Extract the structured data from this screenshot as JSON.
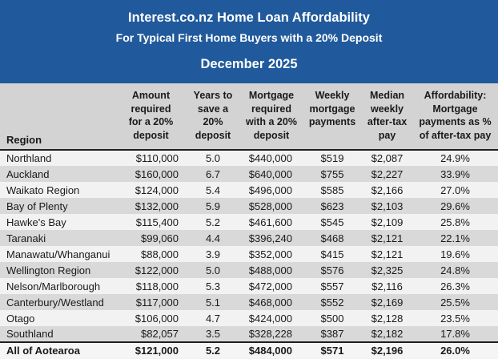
{
  "banner": {
    "title": "Interest.co.nz Home Loan Affordability",
    "subtitle": "For Typical First Home Buyers with a 20% Deposit",
    "period": "December 2025"
  },
  "table": {
    "region_header": "Region",
    "column_headers": [
      "Amount\nrequired\nfor a 20%\ndeposit",
      "Years to\nsave a\n20%\ndeposit",
      "Mortgage\nrequired\nwith a 20%\ndeposit",
      "Weekly\nmortgage\npayments",
      "Median\nweekly\nafter-tax\npay",
      "Affordability:\nMortgage\npayments as %\nof after-tax pay"
    ],
    "rows": [
      {
        "region": "Northland",
        "amount": "$110,000",
        "years": "5.0",
        "mortgage": "$440,000",
        "weekly": "$519",
        "median": "$2,087",
        "affordability": "24.9%"
      },
      {
        "region": "Auckland",
        "amount": "$160,000",
        "years": "6.7",
        "mortgage": "$640,000",
        "weekly": "$755",
        "median": "$2,227",
        "affordability": "33.9%"
      },
      {
        "region": "Waikato Region",
        "amount": "$124,000",
        "years": "5.4",
        "mortgage": "$496,000",
        "weekly": "$585",
        "median": "$2,166",
        "affordability": "27.0%"
      },
      {
        "region": "Bay of Plenty",
        "amount": "$132,000",
        "years": "5.9",
        "mortgage": "$528,000",
        "weekly": "$623",
        "median": "$2,103",
        "affordability": "29.6%"
      },
      {
        "region": "Hawke's Bay",
        "amount": "$115,400",
        "years": "5.2",
        "mortgage": "$461,600",
        "weekly": "$545",
        "median": "$2,109",
        "affordability": "25.8%"
      },
      {
        "region": "Taranaki",
        "amount": "$99,060",
        "years": "4.4",
        "mortgage": "$396,240",
        "weekly": "$468",
        "median": "$2,121",
        "affordability": "22.1%"
      },
      {
        "region": "Manawatu/Whanganui",
        "amount": "$88,000",
        "years": "3.9",
        "mortgage": "$352,000",
        "weekly": "$415",
        "median": "$2,121",
        "affordability": "19.6%"
      },
      {
        "region": "Wellington Region",
        "amount": "$122,000",
        "years": "5.0",
        "mortgage": "$488,000",
        "weekly": "$576",
        "median": "$2,325",
        "affordability": "24.8%"
      },
      {
        "region": "Nelson/Marlborough",
        "amount": "$118,000",
        "years": "5.3",
        "mortgage": "$472,000",
        "weekly": "$557",
        "median": "$2,116",
        "affordability": "26.3%"
      },
      {
        "region": "Canterbury/Westland",
        "amount": "$117,000",
        "years": "5.1",
        "mortgage": "$468,000",
        "weekly": "$552",
        "median": "$2,169",
        "affordability": "25.5%"
      },
      {
        "region": "Otago",
        "amount": "$106,000",
        "years": "4.7",
        "mortgage": "$424,000",
        "weekly": "$500",
        "median": "$2,128",
        "affordability": "23.5%"
      },
      {
        "region": "Southland",
        "amount": "$82,057",
        "years": "3.5",
        "mortgage": "$328,228",
        "weekly": "$387",
        "median": "$2,182",
        "affordability": "17.8%"
      }
    ],
    "total_row": {
      "region": "All of Aotearoa",
      "amount": "$121,000",
      "years": "5.2",
      "mortgage": "$484,000",
      "weekly": "$571",
      "median": "$2,196",
      "affordability": "26.0%"
    }
  },
  "colors": {
    "banner_bg": "#215A9C",
    "banner_text": "#FFFFFF",
    "header_bg": "#D3D3D3",
    "row_light": "#F2F2F2",
    "row_dark": "#D9D9D9",
    "divider": "#1F1F1F",
    "text": "#1A1A1A"
  },
  "chart_data": {
    "type": "table",
    "title": "Interest.co.nz Home Loan Affordability",
    "subtitle": "For Typical First Home Buyers with a 20% Deposit",
    "period": "December 2025",
    "columns": [
      "Region",
      "Amount required for a 20% deposit",
      "Years to save a 20% deposit",
      "Mortgage required with a 20% deposit",
      "Weekly mortgage payments",
      "Median weekly after-tax pay",
      "Affordability: Mortgage payments as % of after-tax pay"
    ],
    "rows": [
      [
        "Northland",
        110000,
        5.0,
        440000,
        519,
        2087,
        24.9
      ],
      [
        "Auckland",
        160000,
        6.7,
        640000,
        755,
        2227,
        33.9
      ],
      [
        "Waikato Region",
        124000,
        5.4,
        496000,
        585,
        2166,
        27.0
      ],
      [
        "Bay of Plenty",
        132000,
        5.9,
        528000,
        623,
        2103,
        29.6
      ],
      [
        "Hawke's Bay",
        115400,
        5.2,
        461600,
        545,
        2109,
        25.8
      ],
      [
        "Taranaki",
        99060,
        4.4,
        396240,
        468,
        2121,
        22.1
      ],
      [
        "Manawatu/Whanganui",
        88000,
        3.9,
        352000,
        415,
        2121,
        19.6
      ],
      [
        "Wellington Region",
        122000,
        5.0,
        488000,
        576,
        2325,
        24.8
      ],
      [
        "Nelson/Marlborough",
        118000,
        5.3,
        472000,
        557,
        2116,
        26.3
      ],
      [
        "Canterbury/Westland",
        117000,
        5.1,
        468000,
        552,
        2169,
        25.5
      ],
      [
        "Otago",
        106000,
        4.7,
        424000,
        500,
        2128,
        23.5
      ],
      [
        "Southland",
        82057,
        3.5,
        328228,
        387,
        2182,
        17.8
      ],
      [
        "All of Aotearoa",
        121000,
        5.2,
        484000,
        571,
        2196,
        26.0
      ]
    ]
  }
}
